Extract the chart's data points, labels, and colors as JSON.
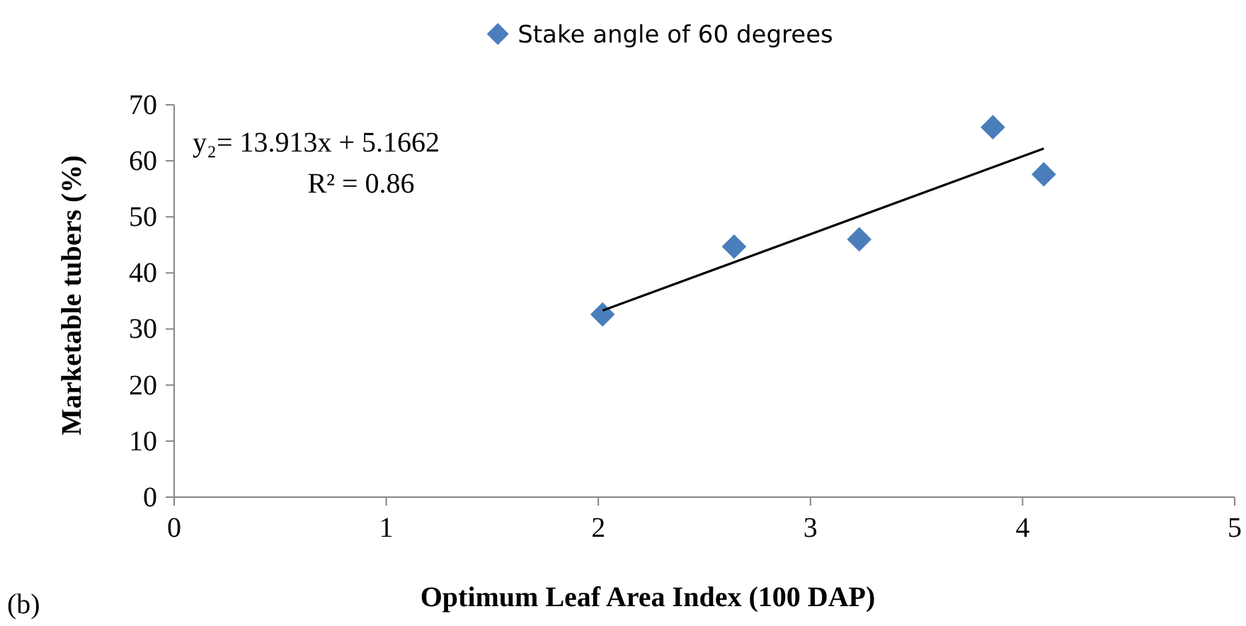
{
  "chart_data": {
    "type": "scatter",
    "xlabel": "Optimum Leaf Area Index (100 DAP)",
    "ylabel": "Marketable tubers (%)",
    "xlim": [
      0,
      5
    ],
    "xticks": [
      0,
      1,
      2,
      3,
      4,
      5
    ],
    "ylim": [
      0,
      70
    ],
    "yticks": [
      0,
      10,
      20,
      30,
      40,
      50,
      60,
      70
    ],
    "grid": false,
    "legend": "top",
    "series": [
      {
        "name": "Stake angle of 60 degrees",
        "marker": "diamond",
        "color": "#4a7ebb",
        "x": [
          2.02,
          2.64,
          3.23,
          3.86,
          4.1
        ],
        "values": [
          32.6,
          44.7,
          46,
          66,
          57.6
        ]
      },
      {
        "type": "line",
        "marker": "none",
        "color": "#000000",
        "x": [
          2.02,
          4.1
        ],
        "values": [
          33.3,
          62.2
        ]
      }
    ],
    "annotations": [
      "y₂= 13.913x + 5.1662",
      "R² = 0.86",
      "(b)"
    ]
  }
}
